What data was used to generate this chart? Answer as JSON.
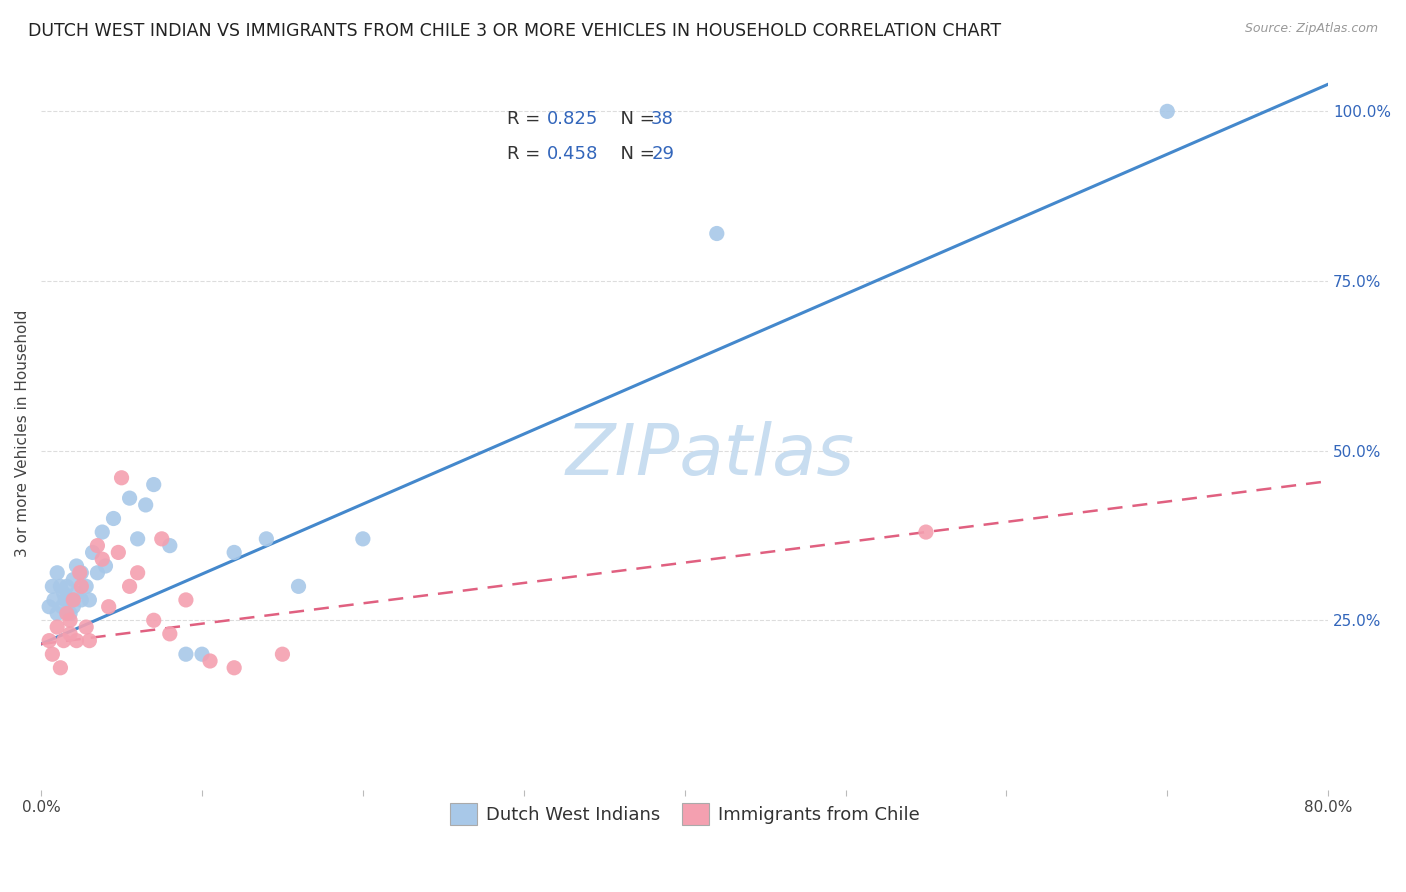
{
  "title": "DUTCH WEST INDIAN VS IMMIGRANTS FROM CHILE 3 OR MORE VEHICLES IN HOUSEHOLD CORRELATION CHART",
  "source": "Source: ZipAtlas.com",
  "ylabel": "3 or more Vehicles in Household",
  "xlim": [
    0.0,
    0.8
  ],
  "ylim": [
    0.0,
    1.05
  ],
  "xticks": [
    0.0,
    0.1,
    0.2,
    0.3,
    0.4,
    0.5,
    0.6,
    0.7,
    0.8
  ],
  "xticklabels": [
    "0.0%",
    "",
    "",
    "",
    "",
    "",
    "",
    "",
    "80.0%"
  ],
  "yticks_right": [
    0.0,
    0.25,
    0.5,
    0.75,
    1.0
  ],
  "yticklabels_right": [
    "",
    "25.0%",
    "50.0%",
    "75.0%",
    "100.0%"
  ],
  "blue_R": "0.825",
  "blue_N": "38",
  "pink_R": "0.458",
  "pink_N": "29",
  "blue_scatter_color": "#a8c8e8",
  "pink_scatter_color": "#f4a0b0",
  "blue_line_color": "#4488cc",
  "pink_line_color": "#e06080",
  "legend_color": "#3366bb",
  "watermark_text": "ZIPatlas",
  "watermark_color": "#c8ddf0",
  "blue_scatter_x": [
    0.005,
    0.007,
    0.008,
    0.01,
    0.01,
    0.012,
    0.013,
    0.014,
    0.015,
    0.016,
    0.018,
    0.018,
    0.02,
    0.02,
    0.022,
    0.022,
    0.025,
    0.025,
    0.028,
    0.03,
    0.032,
    0.035,
    0.038,
    0.04,
    0.045,
    0.055,
    0.06,
    0.065,
    0.07,
    0.08,
    0.09,
    0.1,
    0.12,
    0.14,
    0.16,
    0.2,
    0.42,
    0.7
  ],
  "blue_scatter_y": [
    0.27,
    0.3,
    0.28,
    0.32,
    0.26,
    0.3,
    0.27,
    0.29,
    0.28,
    0.3,
    0.28,
    0.26,
    0.31,
    0.27,
    0.33,
    0.29,
    0.32,
    0.28,
    0.3,
    0.28,
    0.35,
    0.32,
    0.38,
    0.33,
    0.4,
    0.43,
    0.37,
    0.42,
    0.45,
    0.36,
    0.2,
    0.2,
    0.35,
    0.37,
    0.3,
    0.37,
    0.82,
    1.0
  ],
  "pink_scatter_x": [
    0.005,
    0.007,
    0.01,
    0.012,
    0.014,
    0.016,
    0.018,
    0.018,
    0.02,
    0.022,
    0.024,
    0.025,
    0.028,
    0.03,
    0.035,
    0.038,
    0.042,
    0.048,
    0.05,
    0.055,
    0.06,
    0.07,
    0.075,
    0.08,
    0.09,
    0.105,
    0.12,
    0.15,
    0.55
  ],
  "pink_scatter_y": [
    0.22,
    0.2,
    0.24,
    0.18,
    0.22,
    0.26,
    0.25,
    0.23,
    0.28,
    0.22,
    0.32,
    0.3,
    0.24,
    0.22,
    0.36,
    0.34,
    0.27,
    0.35,
    0.46,
    0.3,
    0.32,
    0.25,
    0.37,
    0.23,
    0.28,
    0.19,
    0.18,
    0.2,
    0.38
  ],
  "blue_line_y0": 0.215,
  "blue_line_y1": 1.04,
  "pink_line_y0": 0.215,
  "pink_line_y1": 0.455,
  "grid_color": "#dddddd",
  "background_color": "#ffffff",
  "title_fontsize": 12.5,
  "source_fontsize": 9,
  "ylabel_fontsize": 11,
  "tick_fontsize": 11,
  "legend_fontsize": 13,
  "watermark_fontsize": 52,
  "right_tick_color": "#3366bb"
}
